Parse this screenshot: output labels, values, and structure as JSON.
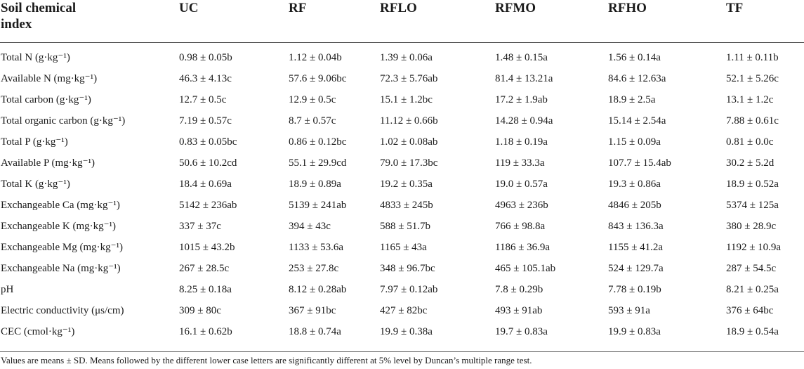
{
  "table": {
    "header": {
      "index_label_line1": "Soil chemical",
      "index_label_line2": "index",
      "columns": [
        "UC",
        "RF",
        "RFLO",
        "RFMO",
        "RFHO",
        "TF"
      ]
    },
    "rows": [
      {
        "label": "Total N (g·kg⁻¹)",
        "values": [
          "0.98 ± 0.05b",
          "1.12 ± 0.04b",
          "1.39 ± 0.06a",
          "1.48 ± 0.15a",
          "1.56 ± 0.14a",
          "1.11 ± 0.11b"
        ]
      },
      {
        "label": "Available N (mg·kg⁻¹)",
        "values": [
          "46.3 ± 4.13c",
          "57.6 ± 9.06bc",
          "72.3 ± 5.76ab",
          "81.4 ± 13.21a",
          "84.6 ± 12.63a",
          "52.1 ± 5.26c"
        ]
      },
      {
        "label": "Total carbon (g·kg⁻¹)",
        "values": [
          "12.7 ± 0.5c",
          "12.9 ± 0.5c",
          "15.1 ± 1.2bc",
          "17.2 ± 1.9ab",
          "18.9 ± 2.5a",
          "13.1 ± 1.2c"
        ]
      },
      {
        "label": "Total organic carbon (g·kg⁻¹)",
        "values": [
          "7.19 ± 0.57c",
          "8.7 ± 0.57c",
          "11.12 ± 0.66b",
          "14.28 ± 0.94a",
          "15.14 ± 2.54a",
          "7.88 ± 0.61c"
        ]
      },
      {
        "label": "Total P (g·kg⁻¹)",
        "values": [
          "0.83 ± 0.05bc",
          "0.86 ± 0.12bc",
          "1.02 ± 0.08ab",
          "1.18 ± 0.19a",
          "1.15 ± 0.09a",
          "0.81 ± 0.0c"
        ]
      },
      {
        "label": "Available P (mg·kg⁻¹)",
        "values": [
          "50.6 ± 10.2cd",
          "55.1 ± 29.9cd",
          "79.0 ± 17.3bc",
          "119 ± 33.3a",
          "107.7 ± 15.4ab",
          "30.2 ± 5.2d"
        ]
      },
      {
        "label": "Total K (g·kg⁻¹)",
        "values": [
          "18.4 ± 0.69a",
          "18.9 ± 0.89a",
          "19.2 ± 0.35a",
          "19.0 ± 0.57a",
          "19.3 ± 0.86a",
          "18.9 ± 0.52a"
        ]
      },
      {
        "label": "Exchangeable Ca (mg·kg⁻¹)",
        "values": [
          "5142 ± 236ab",
          "5139 ± 241ab",
          "4833 ± 245b",
          "4963 ± 236b",
          "4846 ± 205b",
          "5374 ± 125a"
        ]
      },
      {
        "label": "Exchangeable K (mg·kg⁻¹)",
        "values": [
          "337 ± 37c",
          "394 ± 43c",
          "588 ± 51.7b",
          "766 ± 98.8a",
          "843 ± 136.3a",
          "380 ± 28.9c"
        ]
      },
      {
        "label": "Exchangeable Mg (mg·kg⁻¹)",
        "values": [
          "1015 ± 43.2b",
          "1133 ± 53.6a",
          "1165 ± 43a",
          "1186 ± 36.9a",
          "1155 ± 41.2a",
          "1192 ± 10.9a"
        ]
      },
      {
        "label": "Exchangeable Na (mg·kg⁻¹)",
        "values": [
          "267 ± 28.5c",
          "253 ± 27.8c",
          "348 ± 96.7bc",
          "465 ± 105.1ab",
          "524 ± 129.7a",
          "287 ± 54.5c"
        ]
      },
      {
        "label": "pH",
        "values": [
          "8.25 ± 0.18a",
          "8.12 ± 0.28ab",
          "7.97 ± 0.12ab",
          "7.8 ± 0.29b",
          "7.78 ± 0.19b",
          "8.21 ± 0.25a"
        ]
      },
      {
        "label": "Electric conductivity (μs/cm)",
        "values": [
          "309 ± 80c",
          "367 ± 91bc",
          "427 ± 82bc",
          "493 ± 91ab",
          "593 ± 91a",
          "376 ± 64bc"
        ]
      },
      {
        "label": "CEC (cmol·kg⁻¹)",
        "values": [
          "16.1 ± 0.62b",
          "18.8 ± 0.74a",
          "19.9 ± 0.38a",
          "19.7 ± 0.83a",
          "19.9 ± 0.83a",
          "18.9 ± 0.54a"
        ]
      }
    ]
  },
  "footnote": "Values are means ± SD. Means followed by the different lower case letters are significantly different at 5% level by Duncan’s multiple range test."
}
